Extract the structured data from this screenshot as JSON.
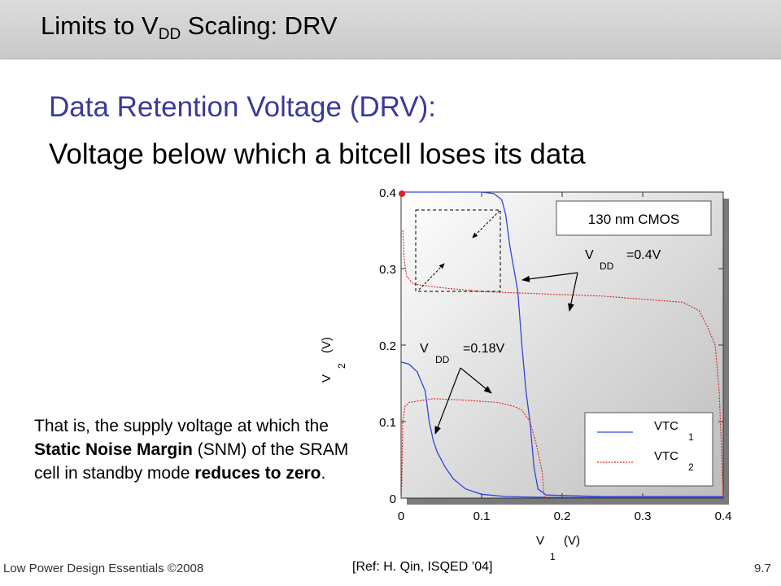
{
  "slide": {
    "title_main": "Limits to V",
    "title_sub": "DD",
    "title_rest": " Scaling: DRV",
    "subtitle_line1": "Data Retention Voltage (DRV):",
    "subtitle_line2": "Voltage below which a bitcell loses its data",
    "description": {
      "part1": "That is, the supply voltage at which the ",
      "bold1": "Static Noise Margin",
      "part2": " (SNM) of the SRAM cell in standby mode ",
      "bold2": "reduces to zero",
      "part3": "."
    },
    "footer_left": "Low Power Design Essentials ©2008",
    "footer_ref": "[Ref: H. Qin, ISQED ’04]",
    "page_number": "9.7"
  },
  "chart_data": {
    "type": "line",
    "xlabel_main": "V",
    "xlabel_sub": "1",
    "xlabel_unit": "(V)",
    "ylabel_main": "V",
    "ylabel_sub": "2",
    "ylabel_unit": "(V)",
    "xlim": [
      0,
      0.4
    ],
    "ylim": [
      0,
      0.4
    ],
    "x_ticks": [
      "0",
      "0.1",
      "0.2",
      "0.3",
      "0.4"
    ],
    "y_ticks": [
      "0",
      "0.1",
      "0.2",
      "0.3",
      "0.4"
    ],
    "tech_label": "130 nm CMOS",
    "annotation_high": {
      "main": "V",
      "sub": "DD",
      "rest": "=0.4V"
    },
    "annotation_low": {
      "main": "V",
      "sub": "DD",
      "rest": "=0.18V"
    },
    "legend": [
      {
        "main": "VTC",
        "sub": "1",
        "color": "#3344dd",
        "style": "solid"
      },
      {
        "main": "VTC",
        "sub": "2",
        "color": "#dd2222",
        "style": "dotted"
      }
    ],
    "series": [
      {
        "key": "vtc1_vdd04",
        "color": "#3344dd",
        "dash": false,
        "points": [
          [
            0,
            0.4
          ],
          [
            0.1,
            0.4
          ],
          [
            0.115,
            0.398
          ],
          [
            0.125,
            0.39
          ],
          [
            0.13,
            0.37
          ],
          [
            0.135,
            0.33
          ],
          [
            0.14,
            0.3
          ],
          [
            0.145,
            0.27
          ],
          [
            0.15,
            0.2
          ],
          [
            0.155,
            0.14
          ],
          [
            0.16,
            0.1
          ],
          [
            0.165,
            0.04
          ],
          [
            0.17,
            0.012
          ],
          [
            0.18,
            0.004
          ],
          [
            0.25,
            0.002
          ],
          [
            0.4,
            0.002
          ]
        ]
      },
      {
        "key": "vtc2_vdd04",
        "color": "#dd2222",
        "dash": true,
        "points": [
          [
            0.002,
            0.35
          ],
          [
            0.004,
            0.31
          ],
          [
            0.007,
            0.29
          ],
          [
            0.015,
            0.28
          ],
          [
            0.05,
            0.275
          ],
          [
            0.1,
            0.27
          ],
          [
            0.15,
            0.268
          ],
          [
            0.2,
            0.266
          ],
          [
            0.25,
            0.264
          ],
          [
            0.3,
            0.26
          ],
          [
            0.35,
            0.256
          ],
          [
            0.37,
            0.245
          ],
          [
            0.38,
            0.225
          ],
          [
            0.39,
            0.2
          ],
          [
            0.395,
            0.14
          ],
          [
            0.398,
            0.06
          ],
          [
            0.4,
            0.0
          ]
        ]
      },
      {
        "key": "vtc1_vdd018",
        "color": "#3344dd",
        "dash": false,
        "points": [
          [
            0,
            0.178
          ],
          [
            0.01,
            0.175
          ],
          [
            0.02,
            0.165
          ],
          [
            0.03,
            0.14
          ],
          [
            0.035,
            0.1
          ],
          [
            0.04,
            0.075
          ],
          [
            0.045,
            0.06
          ],
          [
            0.055,
            0.04
          ],
          [
            0.065,
            0.025
          ],
          [
            0.08,
            0.012
          ],
          [
            0.1,
            0.005
          ],
          [
            0.13,
            0.002
          ],
          [
            0.18,
            0.001
          ],
          [
            0.4,
            0.001
          ]
        ]
      },
      {
        "key": "vtc2_vdd018",
        "color": "#dd2222",
        "dash": true,
        "points": [
          [
            0,
            0.0
          ],
          [
            0.001,
            0.02
          ],
          [
            0.0015,
            0.06
          ],
          [
            0.002,
            0.1
          ],
          [
            0.005,
            0.12
          ],
          [
            0.01,
            0.125
          ],
          [
            0.04,
            0.13
          ],
          [
            0.08,
            0.128
          ],
          [
            0.12,
            0.125
          ],
          [
            0.14,
            0.12
          ],
          [
            0.15,
            0.115
          ],
          [
            0.16,
            0.1
          ],
          [
            0.168,
            0.07
          ],
          [
            0.175,
            0.035
          ],
          [
            0.178,
            0.0
          ]
        ]
      }
    ]
  }
}
